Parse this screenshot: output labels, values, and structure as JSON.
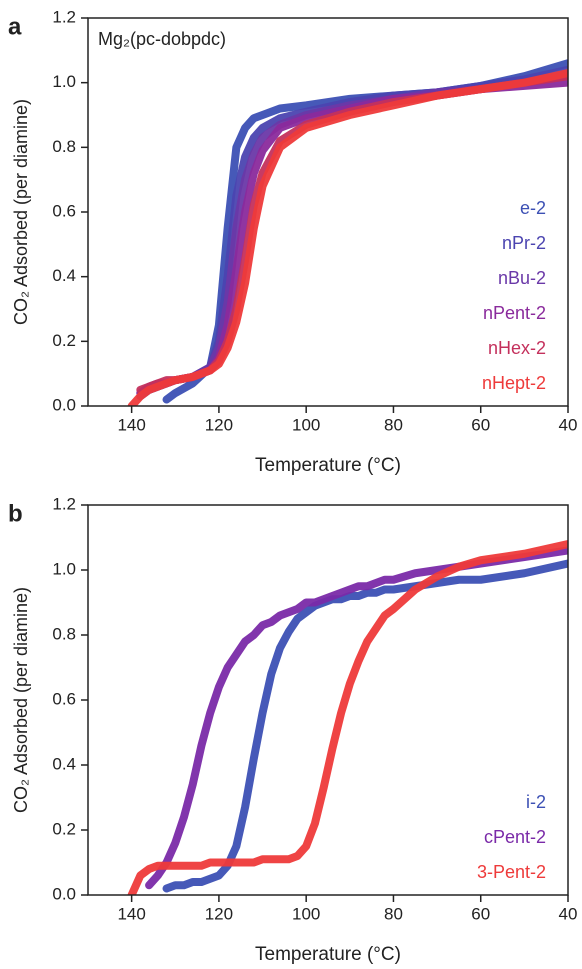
{
  "chart_data": [
    {
      "type": "line",
      "label": "a",
      "annotation": "Mg₂(pc-dobpdc)",
      "xlabel": "Temperature (°C)",
      "ylabel": "CO₂ Adsorbed (per diamine)",
      "xlim": [
        150,
        40
      ],
      "ylim": [
        0,
        1.2
      ],
      "xticks": [
        140,
        120,
        100,
        80,
        60,
        40
      ],
      "yticks": [
        {
          "value": 0,
          "label": "0.0"
        },
        0.2,
        0.4,
        0.6,
        0.8,
        {
          "value": 1,
          "label": "1.0"
        },
        1.2
      ],
      "x": [
        140,
        138,
        136,
        134,
        132,
        130,
        126,
        122,
        120,
        118,
        116,
        114,
        112,
        110,
        106,
        100,
        90,
        80,
        70,
        60,
        50,
        40
      ],
      "series": [
        {
          "name": "e-2",
          "color": "#3c50b4",
          "values": [
            null,
            null,
            null,
            null,
            0.02,
            0.04,
            0.07,
            0.12,
            0.25,
            0.55,
            0.8,
            0.86,
            0.89,
            0.9,
            0.92,
            0.93,
            0.95,
            0.96,
            0.97,
            0.99,
            1.02,
            1.06
          ]
        },
        {
          "name": "nPr-2",
          "color": "#4b44b0",
          "values": [
            null,
            0.03,
            0.05,
            0.06,
            0.07,
            0.08,
            0.09,
            0.12,
            0.2,
            0.4,
            0.65,
            0.77,
            0.83,
            0.86,
            0.89,
            0.91,
            0.94,
            0.96,
            0.97,
            0.99,
            1.01,
            1.04
          ]
        },
        {
          "name": "nBu-2",
          "color": "#6a38a8",
          "values": [
            null,
            0.04,
            0.05,
            0.06,
            0.07,
            0.08,
            0.09,
            0.12,
            0.18,
            0.32,
            0.55,
            0.7,
            0.78,
            0.83,
            0.87,
            0.9,
            0.93,
            0.95,
            0.97,
            0.98,
            1.0,
            1.02
          ]
        },
        {
          "name": "nPent-2",
          "color": "#8a2a9c",
          "values": [
            null,
            0.04,
            0.06,
            0.07,
            0.07,
            0.08,
            0.09,
            0.11,
            0.15,
            0.25,
            0.42,
            0.6,
            0.72,
            0.79,
            0.86,
            0.89,
            0.92,
            0.95,
            0.96,
            0.98,
            0.99,
            1.0
          ]
        },
        {
          "name": "nHex-2",
          "color": "#c4305c",
          "values": [
            null,
            0.05,
            0.06,
            0.07,
            0.08,
            0.08,
            0.09,
            0.11,
            0.14,
            0.2,
            0.3,
            0.45,
            0.62,
            0.72,
            0.82,
            0.87,
            0.91,
            0.94,
            0.96,
            0.98,
            1.0,
            1.02
          ]
        },
        {
          "name": "nHept-2",
          "color": "#ee3a3a",
          "values": [
            0.0,
            0.03,
            0.05,
            0.06,
            0.07,
            0.08,
            0.09,
            0.11,
            0.13,
            0.18,
            0.26,
            0.38,
            0.55,
            0.68,
            0.8,
            0.86,
            0.9,
            0.93,
            0.96,
            0.98,
            1.0,
            1.03
          ]
        }
      ]
    },
    {
      "type": "line",
      "label": "b",
      "xlabel": "Temperature (°C)",
      "ylabel": "CO₂ Adsorbed (per diamine)",
      "xlim": [
        150,
        40
      ],
      "ylim": [
        0,
        1.2
      ],
      "xticks": [
        140,
        120,
        100,
        80,
        60,
        40
      ],
      "yticks": [
        {
          "value": 0,
          "label": "0.0"
        },
        0.2,
        0.4,
        0.6,
        0.8,
        {
          "value": 1,
          "label": "1.0"
        },
        1.2
      ],
      "x": [
        140,
        138,
        136,
        134,
        132,
        130,
        128,
        126,
        124,
        122,
        120,
        118,
        116,
        114,
        112,
        110,
        108,
        106,
        104,
        102,
        100,
        98,
        96,
        94,
        92,
        90,
        88,
        86,
        84,
        82,
        80,
        75,
        70,
        65,
        60,
        50,
        40
      ],
      "series": [
        {
          "name": "i-2",
          "color": "#3c50b4",
          "values": [
            null,
            null,
            null,
            null,
            0.02,
            0.03,
            0.03,
            0.04,
            0.04,
            0.05,
            0.06,
            0.09,
            0.15,
            0.27,
            0.42,
            0.56,
            0.68,
            0.76,
            0.81,
            0.85,
            0.87,
            0.89,
            0.9,
            0.91,
            0.91,
            0.92,
            0.92,
            0.93,
            0.93,
            0.94,
            0.94,
            0.95,
            0.96,
            0.97,
            0.97,
            0.99,
            1.02
          ]
        },
        {
          "name": "cPent-2",
          "color": "#7a2aa8",
          "values": [
            null,
            null,
            0.03,
            0.06,
            0.1,
            0.16,
            0.24,
            0.34,
            0.46,
            0.56,
            0.64,
            0.7,
            0.74,
            0.78,
            0.8,
            0.83,
            0.84,
            0.86,
            0.87,
            0.88,
            0.9,
            0.9,
            0.91,
            0.92,
            0.93,
            0.94,
            0.95,
            0.95,
            0.96,
            0.97,
            0.97,
            0.99,
            1.0,
            1.01,
            1.02,
            1.04,
            1.06
          ]
        },
        {
          "name": "3-Pent-2",
          "color": "#ee3a3a",
          "values": [
            0.0,
            0.06,
            0.08,
            0.09,
            0.09,
            0.09,
            0.09,
            0.09,
            0.09,
            0.1,
            0.1,
            0.1,
            0.1,
            0.1,
            0.1,
            0.11,
            0.11,
            0.11,
            0.11,
            0.12,
            0.15,
            0.22,
            0.33,
            0.45,
            0.56,
            0.65,
            0.72,
            0.78,
            0.82,
            0.86,
            0.88,
            0.94,
            0.98,
            1.01,
            1.03,
            1.05,
            1.08
          ]
        }
      ]
    }
  ]
}
